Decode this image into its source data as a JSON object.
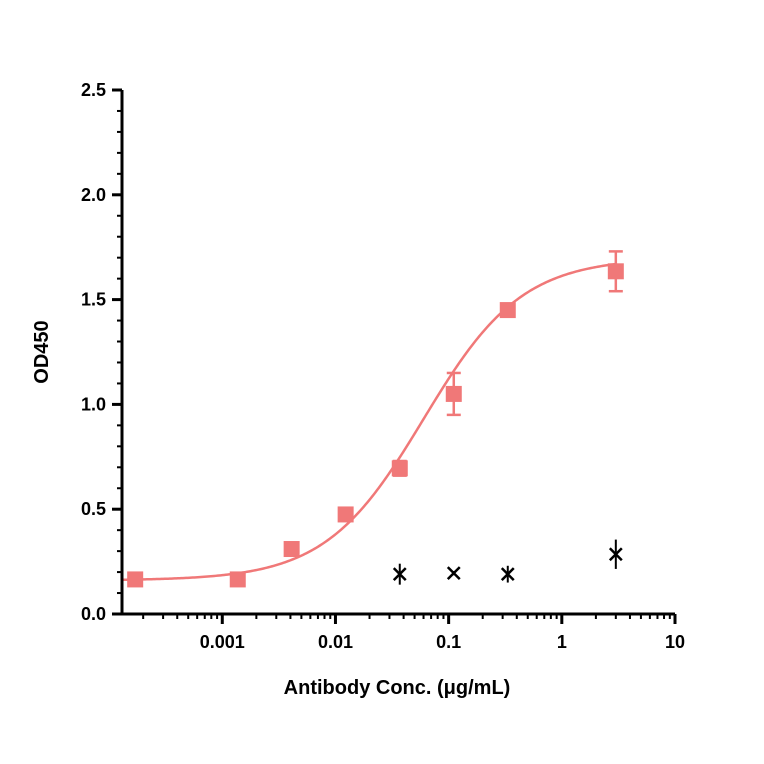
{
  "chart_data": {
    "type": "scatter",
    "xlabel": "Antibody Conc. (μg/mL)",
    "ylabel": "OD450",
    "x_scale": "log",
    "xlim": [
      0.00013,
      10
    ],
    "ylim": [
      0,
      2.5
    ],
    "x_ticks": [
      0.001,
      0.01,
      0.1,
      1,
      10
    ],
    "x_tick_labels": [
      "0.001",
      "0.01",
      "0.1",
      "1",
      "10"
    ],
    "y_ticks": [
      0,
      0.5,
      1.0,
      1.5,
      2.0,
      2.5
    ],
    "y_tick_labels": [
      "0.0",
      "0.5",
      "1.0",
      "1.5",
      "2.0",
      "2.5"
    ],
    "grid": false,
    "series": [
      {
        "marker": "square",
        "color": "#f07878",
        "fit": "4PL sigmoid",
        "points": [
          {
            "x": 0.00017,
            "y": 0.165,
            "err": 0.0
          },
          {
            "x": 0.00137,
            "y": 0.165,
            "err": 0.0
          },
          {
            "x": 0.0041,
            "y": 0.31,
            "err": 0.01
          },
          {
            "x": 0.0123,
            "y": 0.475,
            "err": 0.01
          },
          {
            "x": 0.037,
            "y": 0.695,
            "err": 0.035
          },
          {
            "x": 0.111,
            "y": 1.05,
            "err": 0.1
          },
          {
            "x": 0.333,
            "y": 1.45,
            "err": 0.0
          },
          {
            "x": 3.0,
            "y": 1.635,
            "err": 0.095
          }
        ],
        "fit_params": {
          "bottom": 0.16,
          "top": 1.7,
          "ec50": 0.06,
          "hill": 1.0
        }
      },
      {
        "marker": "x",
        "color": "#000000",
        "points": [
          {
            "x": 0.037,
            "y": 0.19,
            "err": 0.05
          },
          {
            "x": 0.111,
            "y": 0.195,
            "err": 0.01
          },
          {
            "x": 0.333,
            "y": 0.19,
            "err": 0.04
          },
          {
            "x": 3.0,
            "y": 0.285,
            "err": 0.07
          }
        ]
      }
    ]
  }
}
